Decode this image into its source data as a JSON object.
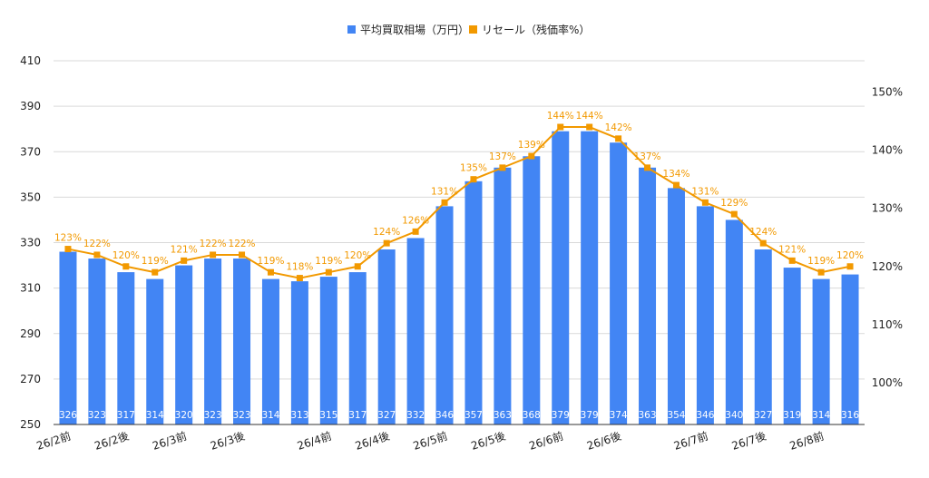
{
  "chart_data": {
    "type": "bar",
    "categories": [
      "26/2前",
      "",
      "26/2後",
      "",
      "26/3前",
      "",
      "26/3後",
      "",
      "",
      "26/4前",
      "",
      "26/4後",
      "",
      "26/5前",
      "",
      "26/5後",
      "",
      "26/6前",
      "",
      "26/6後",
      "",
      "",
      "26/7前",
      "",
      "26/7後",
      "",
      "26/8前",
      ""
    ],
    "series": [
      {
        "name": "平均買取相場（万円）",
        "type": "bar",
        "axis": "left",
        "color": "#4285f4",
        "values": [
          326,
          323,
          317,
          314,
          320,
          323,
          323,
          314,
          313,
          315,
          317,
          327,
          332,
          346,
          357,
          363,
          368,
          379,
          379,
          374,
          363,
          354,
          346,
          340,
          327,
          319,
          314,
          316
        ],
        "labels": [
          "326",
          "323",
          "317",
          "314",
          "320",
          "323",
          "323",
          "314",
          "313",
          "315",
          "317",
          "327",
          "332",
          "346",
          "357",
          "363",
          "368",
          "379",
          "379",
          "374",
          "363",
          "354",
          "346",
          "340",
          "327",
          "319",
          "314",
          "316"
        ]
      },
      {
        "name": "リセール（残価率%）",
        "type": "line",
        "axis": "right",
        "color": "#f29900",
        "values": [
          123,
          122,
          120,
          119,
          121,
          122,
          122,
          119,
          118,
          119,
          120,
          124,
          126,
          131,
          135,
          137,
          139,
          144,
          144,
          142,
          137,
          134,
          131,
          129,
          124,
          121,
          119,
          120
        ],
        "labels": [
          "123%",
          "122%",
          "120%",
          "119%",
          "121%",
          "122%",
          "122%",
          "119%",
          "118%",
          "119%",
          "120%",
          "124%",
          "126%",
          "131%",
          "135%",
          "137%",
          "139%",
          "144%",
          "144%",
          "142%",
          "137%",
          "134%",
          "131%",
          "129%",
          "124%",
          "121%",
          "119%",
          "120%"
        ]
      }
    ],
    "y_left": {
      "min": 250,
      "max": 410,
      "ticks": [
        "250",
        "270",
        "290",
        "310",
        "330",
        "350",
        "370",
        "390",
        "410"
      ]
    },
    "y_right": {
      "min": 92.8,
      "max": 155.4,
      "ticks": [
        {
          "value": 100,
          "label": "100%"
        },
        {
          "value": 110,
          "label": "110%"
        },
        {
          "value": 120,
          "label": "120%"
        },
        {
          "value": 130,
          "label": "130%"
        },
        {
          "value": 140,
          "label": "140%"
        },
        {
          "value": 150,
          "label": "150%"
        }
      ]
    },
    "grid": true,
    "legend_position": "top"
  }
}
